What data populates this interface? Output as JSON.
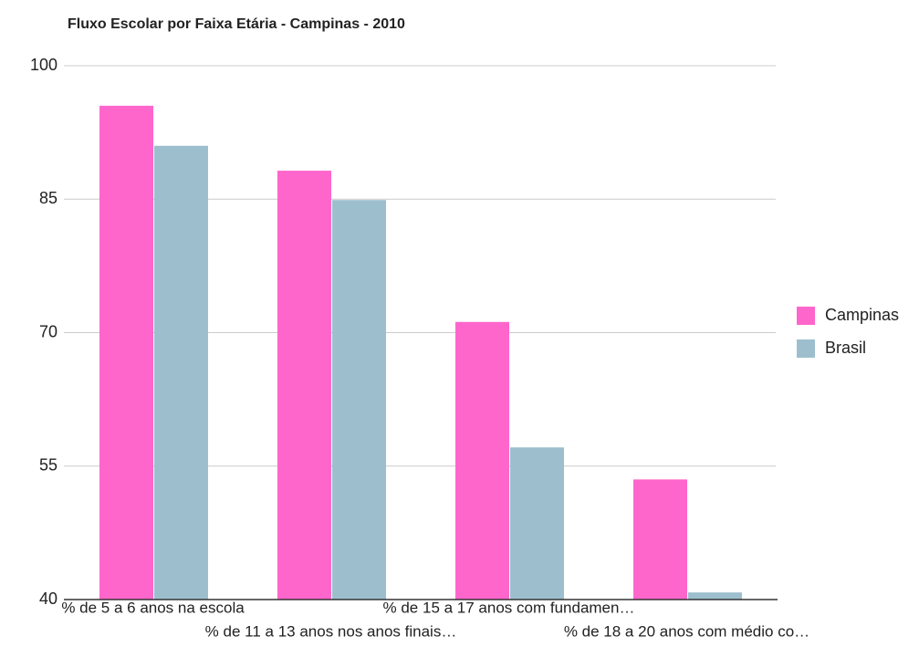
{
  "chart_data": {
    "type": "bar",
    "title": "Fluxo Escolar por Faixa Etária - Campinas - 2010",
    "categories": [
      "% de 5 a 6 anos na escola",
      "% de 11 a 13 anos nos anos finais…",
      "% de 15 a 17 anos com fundamen…",
      "% de 18 a 20 anos com médio co…"
    ],
    "series": [
      {
        "name": "Campinas",
        "color": "#ff66cc",
        "values": [
          95.5,
          88.2,
          71.2,
          53.5
        ]
      },
      {
        "name": "Brasil",
        "color": "#9dbfcd",
        "values": [
          91,
          84.9,
          57.1,
          40.8
        ]
      }
    ],
    "ylim": [
      40,
      100
    ],
    "yticks": [
      40,
      55,
      70,
      85,
      100
    ],
    "grid": true,
    "legend": "right"
  }
}
